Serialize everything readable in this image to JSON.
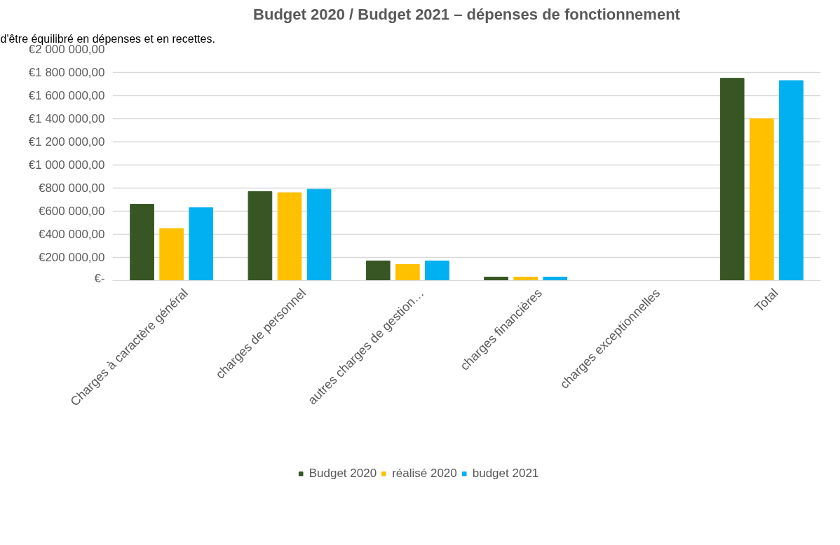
{
  "chart_data": {
    "type": "bar",
    "title": "Budget 2020 / Budget 2021 – dépenses de fonctionnement",
    "annotations": [
      "d'être équilibré en dépenses et en recettes."
    ],
    "categories": [
      "Charges à caractère général",
      "charges de personnel",
      "autres charges de gestion…",
      "charges financières",
      "charges exceptionnelles",
      "Total"
    ],
    "series": [
      {
        "name": "Budget 2020",
        "color": "#375623",
        "values": [
          660000,
          770000,
          170000,
          30000,
          0,
          1750000
        ]
      },
      {
        "name": "réalisé 2020",
        "color": "#ffc000",
        "values": [
          450000,
          760000,
          140000,
          30000,
          0,
          1400000
        ]
      },
      {
        "name": "budget 2021",
        "color": "#00b0f0",
        "values": [
          630000,
          790000,
          170000,
          30000,
          0,
          1730000
        ]
      }
    ],
    "ylim": [
      0,
      2000000
    ],
    "yticks": [
      {
        "value": 0,
        "label": "€-"
      },
      {
        "value": 200000,
        "label": "€200 000,00"
      },
      {
        "value": 400000,
        "label": "€400 000,00"
      },
      {
        "value": 600000,
        "label": "€600 000,00"
      },
      {
        "value": 800000,
        "label": "€800 000,00"
      },
      {
        "value": 1000000,
        "label": "€1 000 000,00"
      },
      {
        "value": 1200000,
        "label": "€1 200 000,00"
      },
      {
        "value": 1400000,
        "label": "€1 400 000,00"
      },
      {
        "value": 1600000,
        "label": "€1 600 000,00"
      },
      {
        "value": 1800000,
        "label": "€1 800 000,00"
      },
      {
        "value": 2000000,
        "label": "€2 000 000,00"
      }
    ],
    "grid": "y",
    "legend": "bottom"
  }
}
